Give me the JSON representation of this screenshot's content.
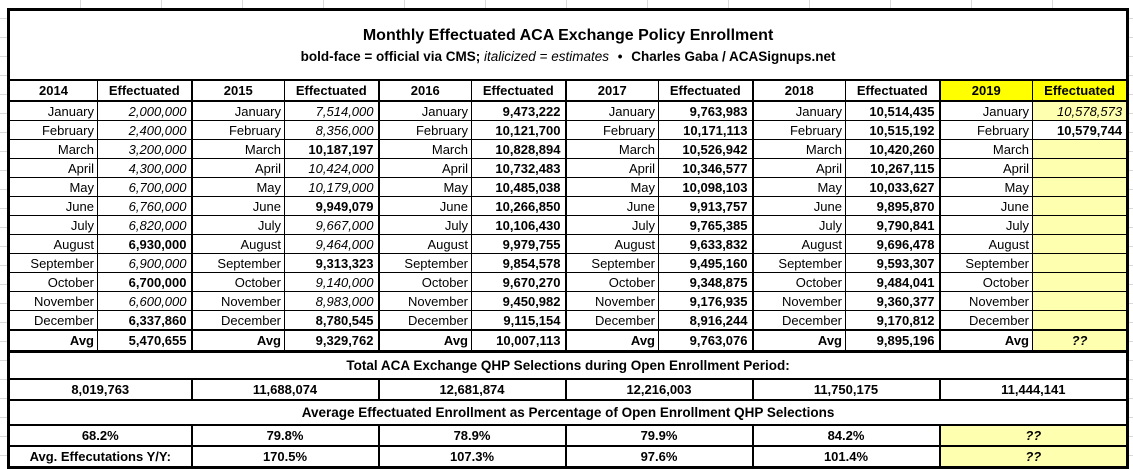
{
  "title": "Monthly Effectuated ACA Exchange Policy Enrollment",
  "subtitle": {
    "official_note": "bold-face = official via CMS;",
    "estimate_note": "italicized = estimates",
    "separator": "•",
    "credit": "Charles Gaba / ACASignups.net"
  },
  "colors": {
    "header_highlight": "#FFFF00",
    "cell_highlight": "#FFFFB0",
    "border": "#000000"
  },
  "effectuated_header": "Effectuated",
  "avg_label": "Avg",
  "month_names": [
    "January",
    "February",
    "March",
    "April",
    "May",
    "June",
    "July",
    "August",
    "September",
    "October",
    "November",
    "December"
  ],
  "years": [
    {
      "year": "2014",
      "highlight": false,
      "values": [
        {
          "v": "2,000,000",
          "style": "est"
        },
        {
          "v": "2,400,000",
          "style": "est"
        },
        {
          "v": "3,200,000",
          "style": "est"
        },
        {
          "v": "4,300,000",
          "style": "est"
        },
        {
          "v": "6,700,000",
          "style": "est"
        },
        {
          "v": "6,760,000",
          "style": "est"
        },
        {
          "v": "6,820,000",
          "style": "est"
        },
        {
          "v": "6,930,000",
          "style": "official"
        },
        {
          "v": "6,900,000",
          "style": "est"
        },
        {
          "v": "6,700,000",
          "style": "official"
        },
        {
          "v": "6,600,000",
          "style": "est"
        },
        {
          "v": "6,337,860",
          "style": "official"
        }
      ],
      "avg": {
        "v": "5,470,655",
        "style": "official"
      }
    },
    {
      "year": "2015",
      "highlight": false,
      "values": [
        {
          "v": "7,514,000",
          "style": "est"
        },
        {
          "v": "8,356,000",
          "style": "est"
        },
        {
          "v": "10,187,197",
          "style": "official"
        },
        {
          "v": "10,424,000",
          "style": "est"
        },
        {
          "v": "10,179,000",
          "style": "est"
        },
        {
          "v": "9,949,079",
          "style": "official"
        },
        {
          "v": "9,667,000",
          "style": "est"
        },
        {
          "v": "9,464,000",
          "style": "est"
        },
        {
          "v": "9,313,323",
          "style": "official"
        },
        {
          "v": "9,140,000",
          "style": "est"
        },
        {
          "v": "8,983,000",
          "style": "est"
        },
        {
          "v": "8,780,545",
          "style": "official"
        }
      ],
      "avg": {
        "v": "9,329,762",
        "style": "official"
      }
    },
    {
      "year": "2016",
      "highlight": false,
      "values": [
        {
          "v": "9,473,222",
          "style": "official"
        },
        {
          "v": "10,121,700",
          "style": "official"
        },
        {
          "v": "10,828,894",
          "style": "official"
        },
        {
          "v": "10,732,483",
          "style": "official"
        },
        {
          "v": "10,485,038",
          "style": "official"
        },
        {
          "v": "10,266,850",
          "style": "official"
        },
        {
          "v": "10,106,430",
          "style": "official"
        },
        {
          "v": "9,979,755",
          "style": "official"
        },
        {
          "v": "9,854,578",
          "style": "official"
        },
        {
          "v": "9,670,270",
          "style": "official"
        },
        {
          "v": "9,450,982",
          "style": "official"
        },
        {
          "v": "9,115,154",
          "style": "official"
        }
      ],
      "avg": {
        "v": "10,007,113",
        "style": "official"
      }
    },
    {
      "year": "2017",
      "highlight": false,
      "values": [
        {
          "v": "9,763,983",
          "style": "official"
        },
        {
          "v": "10,171,113",
          "style": "official"
        },
        {
          "v": "10,526,942",
          "style": "official"
        },
        {
          "v": "10,346,577",
          "style": "official"
        },
        {
          "v": "10,098,103",
          "style": "official"
        },
        {
          "v": "9,913,757",
          "style": "official"
        },
        {
          "v": "9,765,385",
          "style": "official"
        },
        {
          "v": "9,633,832",
          "style": "official"
        },
        {
          "v": "9,495,160",
          "style": "official"
        },
        {
          "v": "9,348,875",
          "style": "official"
        },
        {
          "v": "9,176,935",
          "style": "official"
        },
        {
          "v": "8,916,244",
          "style": "official"
        }
      ],
      "avg": {
        "v": "9,763,076",
        "style": "official"
      }
    },
    {
      "year": "2018",
      "highlight": false,
      "values": [
        {
          "v": "10,514,435",
          "style": "official"
        },
        {
          "v": "10,515,192",
          "style": "official"
        },
        {
          "v": "10,420,260",
          "style": "official"
        },
        {
          "v": "10,267,115",
          "style": "official"
        },
        {
          "v": "10,033,627",
          "style": "official"
        },
        {
          "v": "9,895,870",
          "style": "official"
        },
        {
          "v": "9,790,841",
          "style": "official"
        },
        {
          "v": "9,696,478",
          "style": "official"
        },
        {
          "v": "9,593,307",
          "style": "official"
        },
        {
          "v": "9,484,041",
          "style": "official"
        },
        {
          "v": "9,360,377",
          "style": "official"
        },
        {
          "v": "9,170,812",
          "style": "official"
        }
      ],
      "avg": {
        "v": "9,895,196",
        "style": "official"
      }
    },
    {
      "year": "2019",
      "highlight": true,
      "values": [
        {
          "v": "10,578,573",
          "style": "est",
          "hl": true
        },
        {
          "v": "10,579,744",
          "style": "official"
        },
        {
          "v": "",
          "hl": true
        },
        {
          "v": "",
          "hl": true
        },
        {
          "v": "",
          "hl": true
        },
        {
          "v": "",
          "hl": true
        },
        {
          "v": "",
          "hl": true
        },
        {
          "v": "",
          "hl": true
        },
        {
          "v": "",
          "hl": true
        },
        {
          "v": "",
          "hl": true
        },
        {
          "v": "",
          "hl": true
        },
        {
          "v": "",
          "hl": true
        }
      ],
      "avg": {
        "v": "??",
        "style": "est",
        "hl": true,
        "center": true
      }
    }
  ],
  "qhp_section": {
    "label": "Total ACA Exchange QHP Selections during Open Enrollment Period:",
    "values": [
      {
        "v": "8,019,763"
      },
      {
        "v": "11,688,074"
      },
      {
        "v": "12,681,874"
      },
      {
        "v": "12,216,003"
      },
      {
        "v": "11,750,175"
      },
      {
        "v": "11,444,141"
      }
    ]
  },
  "pct_section": {
    "label": "Average Effectuated Enrollment as Percentage of Open Enrollment QHP Selections",
    "values": [
      {
        "v": "68.2%"
      },
      {
        "v": "79.8%"
      },
      {
        "v": "78.9%"
      },
      {
        "v": "79.9%"
      },
      {
        "v": "84.2%"
      },
      {
        "v": "??",
        "style": "est",
        "hl": true
      }
    ]
  },
  "yoy_section": {
    "label": "Avg. Effecutations Y/Y:",
    "values": [
      {
        "v": "170.5%"
      },
      {
        "v": "107.3%"
      },
      {
        "v": "97.6%"
      },
      {
        "v": "101.4%"
      },
      {
        "v": "??",
        "style": "est",
        "hl": true
      }
    ]
  }
}
